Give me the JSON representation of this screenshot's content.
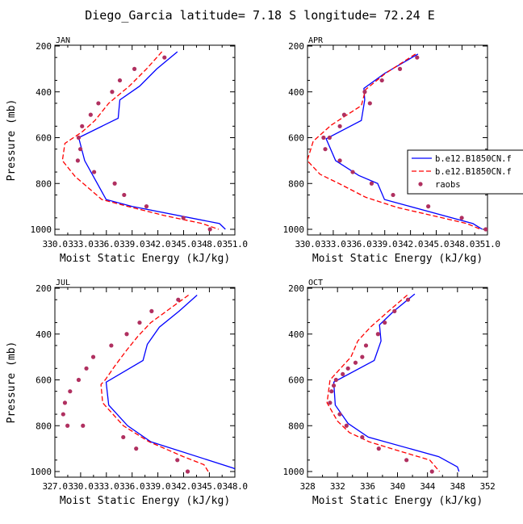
{
  "figure": {
    "title": "Diego_Garcia   latitude= 7.18 S longitude= 72.24 E"
  },
  "legend": {
    "entries": [
      {
        "label": "b.e12.B1850CN.f",
        "color": "#0000ff",
        "style": "solid"
      },
      {
        "label": "b.e12.B1850CN.f",
        "color": "#ff0000",
        "style": "dashed"
      },
      {
        "label": "raobs",
        "color": "#b03060",
        "style": "dots"
      }
    ]
  },
  "chart_data": [
    {
      "type": "line",
      "panel": "JAN",
      "title": "JAN",
      "xlabel": "Moist Static Energy (kJ/kg)",
      "ylabel": "Pressure (mb)",
      "xlim": [
        330.03,
        351.0
      ],
      "xticks": [
        330.03,
        333.03,
        336.03,
        339.03,
        342.03,
        345.03,
        348.03,
        351.0
      ],
      "xtick_labels": [
        "330.0",
        "333.0",
        "336.0",
        "339.0",
        "342.0",
        "345.0",
        "348.0",
        "351.0"
      ],
      "ylim": [
        200,
        1000
      ],
      "yticks": [
        200,
        400,
        600,
        800,
        1000
      ],
      "ytick_labels": [
        "200",
        "400",
        "600",
        "800",
        "1000"
      ],
      "y_inverted": true,
      "series": [
        {
          "name": "b.e12.B1850CN.f",
          "kind": "line",
          "color": "#0000ff",
          "dash": false,
          "x": [
            344.3,
            341.9,
            339.9,
            337.6,
            337.4,
            332.8,
            333.5,
            336.0,
            339.0,
            349.2,
            349.9
          ],
          "y": [
            225,
            300,
            375,
            435,
            515,
            600,
            700,
            870,
            900,
            975,
            1000
          ]
        },
        {
          "name": "b.e12.B1850CN.f",
          "kind": "line",
          "color": "#ff0000",
          "dash": true,
          "x": [
            342.5,
            340.7,
            338.7,
            336.3,
            334.7,
            333.2,
            331.2,
            330.9,
            332.4,
            335.5,
            338.5,
            342.8,
            347.2,
            349.1
          ],
          "y": [
            225,
            300,
            375,
            450,
            525,
            575,
            625,
            700,
            770,
            870,
            900,
            940,
            975,
            1000
          ]
        },
        {
          "name": "raobs",
          "kind": "scatter",
          "color": "#b03060",
          "x": [
            342.8,
            339.3,
            337.6,
            336.7,
            335.1,
            334.2,
            333.2,
            332.8,
            333.0,
            332.7,
            334.6,
            337.0,
            338.1,
            340.7,
            345.0,
            348.1
          ],
          "y": [
            250,
            300,
            350,
            400,
            450,
            500,
            550,
            600,
            650,
            700,
            750,
            800,
            850,
            900,
            950,
            1000
          ]
        }
      ]
    },
    {
      "type": "line",
      "panel": "APR",
      "title": "APR",
      "xlabel": "Moist Static Energy (kJ/kg)",
      "ylabel": "",
      "xlim": [
        330.03,
        351.0
      ],
      "xticks": [
        330.03,
        333.03,
        336.03,
        339.03,
        342.03,
        345.03,
        348.03,
        351.0
      ],
      "xtick_labels": [
        "330.0",
        "333.0",
        "336.0",
        "339.0",
        "342.0",
        "345.0",
        "348.0",
        "351.0"
      ],
      "ylim": [
        200,
        1000
      ],
      "yticks": [
        200,
        400,
        600,
        800,
        1000
      ],
      "ytick_labels": [
        "200",
        "400",
        "600",
        "800",
        "1000"
      ],
      "y_inverted": true,
      "series": [
        {
          "name": "b.e12.B1850CN.f",
          "kind": "line",
          "color": "#0000ff",
          "dash": false,
          "x": [
            342.9,
            339.0,
            336.6,
            336.7,
            336.3,
            332.2,
            333.3,
            336.0,
            338.2,
            339.0,
            349.3,
            350.4
          ],
          "y": [
            235,
            320,
            385,
            435,
            525,
            605,
            700,
            765,
            800,
            870,
            975,
            1000
          ]
        },
        {
          "name": "b.e12.B1850CN.f",
          "kind": "line",
          "color": "#ff0000",
          "dash": true,
          "x": [
            342.6,
            339.1,
            336.8,
            336.3,
            332.8,
            330.7,
            330.0,
            331.5,
            333.7,
            336.8,
            340.5,
            344.6,
            348.6,
            350.2
          ],
          "y": [
            235,
            320,
            390,
            460,
            545,
            615,
            700,
            760,
            800,
            860,
            905,
            940,
            975,
            1000
          ]
        },
        {
          "name": "raobs",
          "kind": "scatter",
          "color": "#b03060",
          "x": [
            342.8,
            340.8,
            338.7,
            336.7,
            337.3,
            334.3,
            333.8,
            332.6,
            331.9,
            332.1,
            333.8,
            335.3,
            337.5,
            340.0,
            344.1,
            348.0,
            350.8
          ],
          "y": [
            250,
            300,
            350,
            400,
            450,
            500,
            550,
            600,
            600,
            650,
            700,
            750,
            800,
            850,
            900,
            950,
            1000
          ]
        }
      ]
    },
    {
      "type": "line",
      "panel": "JUL",
      "title": "JUL",
      "xlabel": "Moist Static Energy (kJ/kg)",
      "ylabel": "Pressure (mb)",
      "xlim": [
        327.03,
        348.0
      ],
      "xticks": [
        327.03,
        330.03,
        333.03,
        336.03,
        339.03,
        342.03,
        345.03,
        348.0
      ],
      "xtick_labels": [
        "327.0",
        "330.0",
        "333.0",
        "336.0",
        "339.0",
        "342.0",
        "345.0",
        "348.0"
      ],
      "ylim": [
        200,
        1000
      ],
      "yticks": [
        200,
        400,
        600,
        800,
        1000
      ],
      "ytick_labels": [
        "200",
        "400",
        "600",
        "800",
        "1000"
      ],
      "y_inverted": true,
      "series": [
        {
          "name": "b.e12.B1850CN.f",
          "kind": "line",
          "color": "#0000ff",
          "dash": false,
          "x": [
            343.6,
            341.5,
            339.2,
            337.8,
            337.3,
            333.0,
            333.3,
            335.5,
            338.2,
            347.8,
            348.5
          ],
          "y": [
            230,
            300,
            370,
            445,
            515,
            610,
            710,
            800,
            870,
            985,
            1000
          ]
        },
        {
          "name": "b.e12.B1850CN.f",
          "kind": "line",
          "color": "#ff0000",
          "dash": true,
          "x": [
            342.6,
            340.4,
            338.2,
            336.7,
            335.4,
            334.0,
            332.9,
            332.4,
            332.6,
            335.0,
            338.0,
            342.0,
            344.4,
            344.9
          ],
          "y": [
            230,
            290,
            350,
            410,
            470,
            540,
            600,
            620,
            700,
            800,
            870,
            935,
            970,
            1000
          ]
        },
        {
          "name": "raobs",
          "kind": "scatter",
          "color": "#b03060",
          "x": [
            341.4,
            338.3,
            336.9,
            335.4,
            333.6,
            331.5,
            330.7,
            329.8,
            328.8,
            328.2,
            328.0,
            328.5,
            330.3,
            335.0,
            336.5,
            341.3,
            342.5
          ],
          "y": [
            250,
            300,
            350,
            400,
            450,
            500,
            550,
            600,
            650,
            700,
            750,
            800,
            800,
            850,
            900,
            950,
            1000
          ]
        }
      ]
    },
    {
      "type": "line",
      "panel": "OCT",
      "title": "OCT",
      "xlabel": "Moist Static Energy (kJ/kg)",
      "ylabel": "",
      "xlim": [
        328,
        352
      ],
      "xticks": [
        328,
        332,
        336,
        340,
        344,
        348,
        352
      ],
      "xtick_labels": [
        "328",
        "332",
        "336",
        "340",
        "344",
        "348",
        "352"
      ],
      "ylim": [
        200,
        1000
      ],
      "yticks": [
        200,
        400,
        600,
        800,
        1000
      ],
      "ytick_labels": [
        "200",
        "400",
        "600",
        "800",
        "1000"
      ],
      "y_inverted": true,
      "series": [
        {
          "name": "b.e12.B1850CN.f",
          "kind": "line",
          "color": "#0000ff",
          "dash": false,
          "x": [
            342.3,
            339.5,
            337.6,
            337.8,
            336.9,
            331.5,
            331.7,
            333.4,
            336.1,
            345.5,
            348.0,
            348.2
          ],
          "y": [
            225,
            300,
            360,
            430,
            515,
            610,
            710,
            790,
            850,
            935,
            980,
            1000
          ]
        },
        {
          "name": "b.e12.B1850CN.f",
          "kind": "line",
          "color": "#ff0000",
          "dash": true,
          "x": [
            341.3,
            338.8,
            336.4,
            334.7,
            333.8,
            331.0,
            330.6,
            332.0,
            333.6,
            336.2,
            340.2,
            344.3,
            345.6
          ],
          "y": [
            230,
            300,
            370,
            430,
            500,
            600,
            700,
            780,
            830,
            870,
            910,
            950,
            1000
          ]
        },
        {
          "name": "raobs",
          "kind": "scatter",
          "color": "#b03060",
          "x": [
            341.4,
            339.6,
            338.3,
            337.4,
            335.8,
            335.3,
            334.4,
            333.4,
            332.7,
            331.8,
            331.5,
            331.2,
            331.0,
            332.3,
            333.2,
            335.3,
            337.5,
            341.2,
            344.6
          ],
          "y": [
            250,
            300,
            350,
            400,
            450,
            500,
            525,
            550,
            575,
            600,
            625,
            650,
            700,
            750,
            800,
            850,
            900,
            950,
            1000
          ]
        }
      ]
    }
  ]
}
